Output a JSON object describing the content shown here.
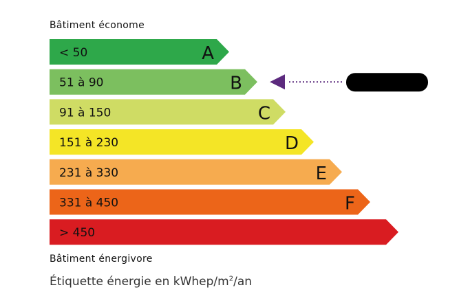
{
  "top_label": "Bâtiment économe",
  "bottom_label": "Bâtiment énergivore",
  "footer": {
    "prefix": "Étiquette énergie en kWhep/m",
    "sup": "2",
    "suffix": "/an"
  },
  "classes": [
    {
      "letter": "A",
      "range": "< 50",
      "color": "#2ea84a"
    },
    {
      "letter": "B",
      "range": "51 à 90",
      "color": "#7cbf5f"
    },
    {
      "letter": "C",
      "range": "91 à 150",
      "color": "#cfdc64"
    },
    {
      "letter": "D",
      "range": "151 à 230",
      "color": "#f4e526"
    },
    {
      "letter": "E",
      "range": "231 à 330",
      "color": "#f6ab4f"
    },
    {
      "letter": "F",
      "range": "331 à 450",
      "color": "#ec6519"
    },
    {
      "letter": "",
      "range": "> 450",
      "color": "#d91c21"
    }
  ],
  "indicator": {
    "class": "B",
    "color": "#5c2a7e",
    "value_redacted": true
  }
}
